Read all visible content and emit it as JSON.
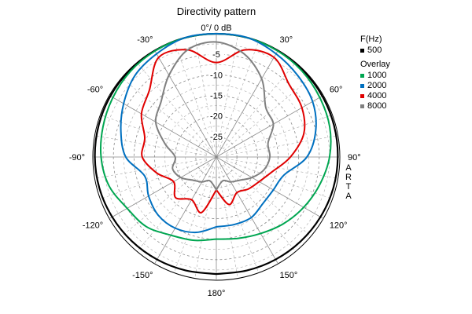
{
  "chart_data": {
    "type": "polar-line",
    "title": "Directivity pattern",
    "radial_axis": {
      "unit_label": "0°/ 0 dB",
      "range_db": [
        -30,
        0
      ],
      "tick_labels": [
        "-5",
        "-10",
        "-15",
        "-20",
        "-25"
      ],
      "ticks_db": [
        -5,
        -10,
        -15,
        -20,
        -25
      ]
    },
    "angle_labels": [
      {
        "deg": -30,
        "text": "-30°"
      },
      {
        "deg": 30,
        "text": "30°"
      },
      {
        "deg": -60,
        "text": "-60°"
      },
      {
        "deg": 60,
        "text": "60°"
      },
      {
        "deg": -90,
        "text": "-90°"
      },
      {
        "deg": 90,
        "text": "90°"
      },
      {
        "deg": -120,
        "text": "-120°"
      },
      {
        "deg": 120,
        "text": "120°"
      },
      {
        "deg": -150,
        "text": "-150°"
      },
      {
        "deg": 150,
        "text": "150°"
      },
      {
        "deg": 180,
        "text": "180°"
      }
    ],
    "grid": true,
    "legend": {
      "header": "F(Hz)",
      "overlay_header": "Overlay",
      "placement": "right"
    },
    "side_text": "ARTA",
    "angles_deg": [
      -180,
      -165,
      -150,
      -135,
      -120,
      -105,
      -90,
      -75,
      -60,
      -45,
      -30,
      -15,
      0,
      15,
      30,
      45,
      60,
      75,
      90,
      105,
      120,
      135,
      150,
      165,
      180
    ],
    "series": [
      {
        "name": "500",
        "color": "#000000",
        "role": "main",
        "values_db": [
          -1.5,
          -1.4,
          -1.2,
          -1,
          -0.8,
          -0.6,
          -0.5,
          -0.4,
          -0.3,
          -0.2,
          -0.1,
          0,
          0,
          0,
          -0.1,
          -0.2,
          -0.3,
          -0.4,
          -0.5,
          -0.6,
          -0.8,
          -1,
          -1.2,
          -1.4,
          -1.5
        ]
      },
      {
        "name": "1000",
        "color": "#00a651",
        "role": "overlay",
        "values_db": [
          -10,
          -9,
          -8,
          -6,
          -5,
          -3,
          -2,
          -1.5,
          -1,
          -0.5,
          -0.2,
          0,
          0,
          0,
          -0.2,
          -0.5,
          -1,
          -1.5,
          -2.5,
          -4,
          -5.5,
          -7,
          -8.5,
          -9.5,
          -10
        ]
      },
      {
        "name": "2000",
        "color": "#0070c0",
        "role": "overlay",
        "values_db": [
          -13,
          -11,
          -10,
          -10,
          -11,
          -12,
          -8,
          -6,
          -4,
          -2,
          -1,
          0,
          0,
          0,
          -1,
          -2,
          -3,
          -5,
          -8,
          -13,
          -14,
          -14,
          -13,
          -13,
          -13
        ]
      },
      {
        "name": "4000",
        "color": "#e00000",
        "role": "overlay",
        "values_db": [
          -22,
          -16,
          -18,
          -16,
          -18,
          -15,
          -12,
          -12,
          -9,
          -7,
          -2,
          -3,
          -7,
          -3,
          -2,
          -5,
          -6,
          -8,
          -12,
          -16,
          -18,
          -19,
          -20,
          -18,
          -22
        ]
      },
      {
        "name": "8000",
        "color": "#808080",
        "role": "overlay",
        "values_db": [
          -22,
          -24,
          -23,
          -22,
          -20,
          -19,
          -20,
          -17,
          -13,
          -11,
          -7,
          -3,
          -2,
          -4,
          -8,
          -13,
          -14,
          -17,
          -17,
          -18,
          -20,
          -22,
          -23,
          -24,
          -22
        ]
      }
    ]
  }
}
